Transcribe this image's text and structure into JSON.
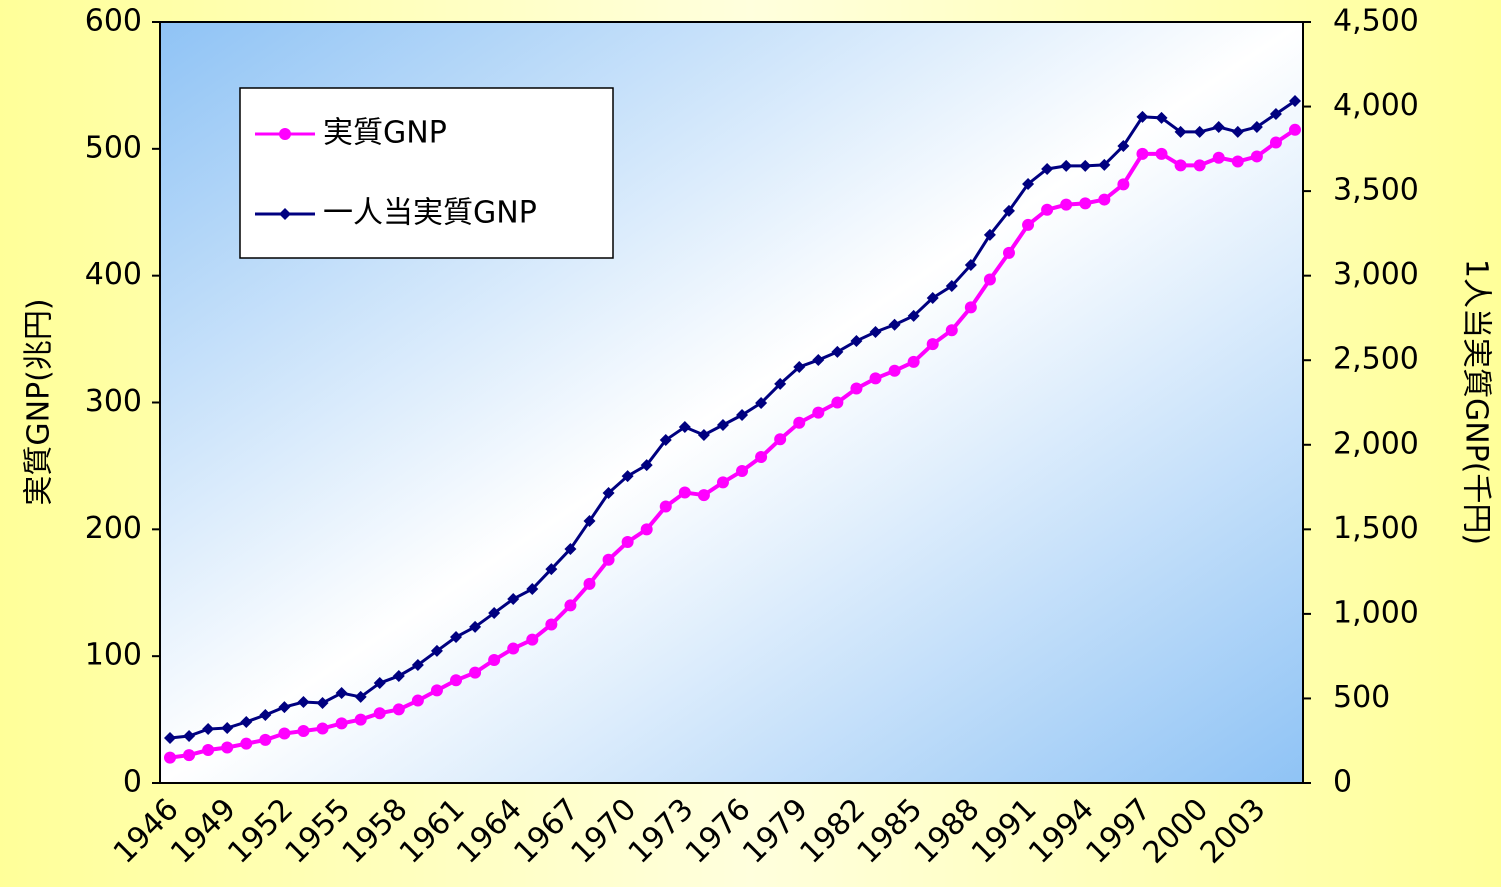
{
  "chart_data": {
    "type": "line",
    "ylabel": "実質GNP(兆円)",
    "y2label": "1人当実質GNP(千円)",
    "categories": [
      "1946",
      null,
      null,
      "1949",
      null,
      null,
      "1952",
      null,
      null,
      "1955",
      null,
      null,
      "1958",
      null,
      null,
      "1961",
      null,
      null,
      "1964",
      null,
      null,
      "1967",
      null,
      null,
      "1970",
      null,
      null,
      "1973",
      null,
      null,
      "1976",
      null,
      null,
      "1979",
      null,
      null,
      "1982",
      null,
      null,
      "1985",
      null,
      null,
      "1988",
      null,
      null,
      "1991",
      null,
      null,
      "1994",
      null,
      null,
      "1997",
      null,
      null,
      "2000",
      null,
      null,
      "2003",
      null,
      null
    ],
    "series": [
      {
        "name": "実質GNP",
        "color": "#ff00ff",
        "marker": "circle",
        "values": [
          20,
          22,
          26,
          28,
          31,
          34,
          39,
          41,
          43,
          47,
          50,
          55,
          58,
          65,
          73,
          81,
          87,
          97,
          106,
          113,
          125,
          140,
          157,
          176,
          190,
          200,
          218,
          229,
          227,
          237,
          246,
          257,
          271,
          284,
          292,
          300,
          311,
          319,
          325,
          332,
          346,
          357,
          375,
          397,
          418,
          440,
          452,
          456,
          457,
          460,
          472,
          496,
          496,
          487,
          487,
          493,
          490,
          494,
          505,
          515
        ]
      },
      {
        "name": "一人当実質GNP",
        "color": "#000080",
        "marker": "diamond",
        "axis": "y2",
        "values": [
          266,
          278,
          319,
          325,
          361,
          402,
          449,
          479,
          473,
          532,
          509,
          591,
          633,
          698,
          781,
          863,
          923,
          1005,
          1088,
          1147,
          1265,
          1384,
          1549,
          1715,
          1815,
          1880,
          2028,
          2105,
          2058,
          2117,
          2176,
          2247,
          2360,
          2460,
          2501,
          2549,
          2614,
          2667,
          2710,
          2762,
          2868,
          2939,
          3063,
          3241,
          3383,
          3542,
          3631,
          3649,
          3649,
          3655,
          3767,
          3939,
          3933,
          3850,
          3850,
          3879,
          3850,
          3879,
          3956,
          4033
        ]
      }
    ],
    "ylim": [
      0,
      600
    ],
    "yticks": [
      0,
      100,
      200,
      300,
      400,
      500,
      600
    ],
    "y2lim": [
      0,
      4500
    ],
    "y2ticks": [
      0,
      500,
      {
        "value": 1000,
        "label": "1,000"
      },
      {
        "value": 1500,
        "label": "1,500"
      },
      {
        "value": 2000,
        "label": "2,000"
      },
      {
        "value": 2500,
        "label": "2,500"
      },
      {
        "value": 3000,
        "label": "3,000"
      },
      {
        "value": 3500,
        "label": "3,500"
      },
      {
        "value": 4000,
        "label": "4,000"
      },
      {
        "value": 4500,
        "label": "4,500"
      }
    ],
    "legend": "upper left"
  }
}
